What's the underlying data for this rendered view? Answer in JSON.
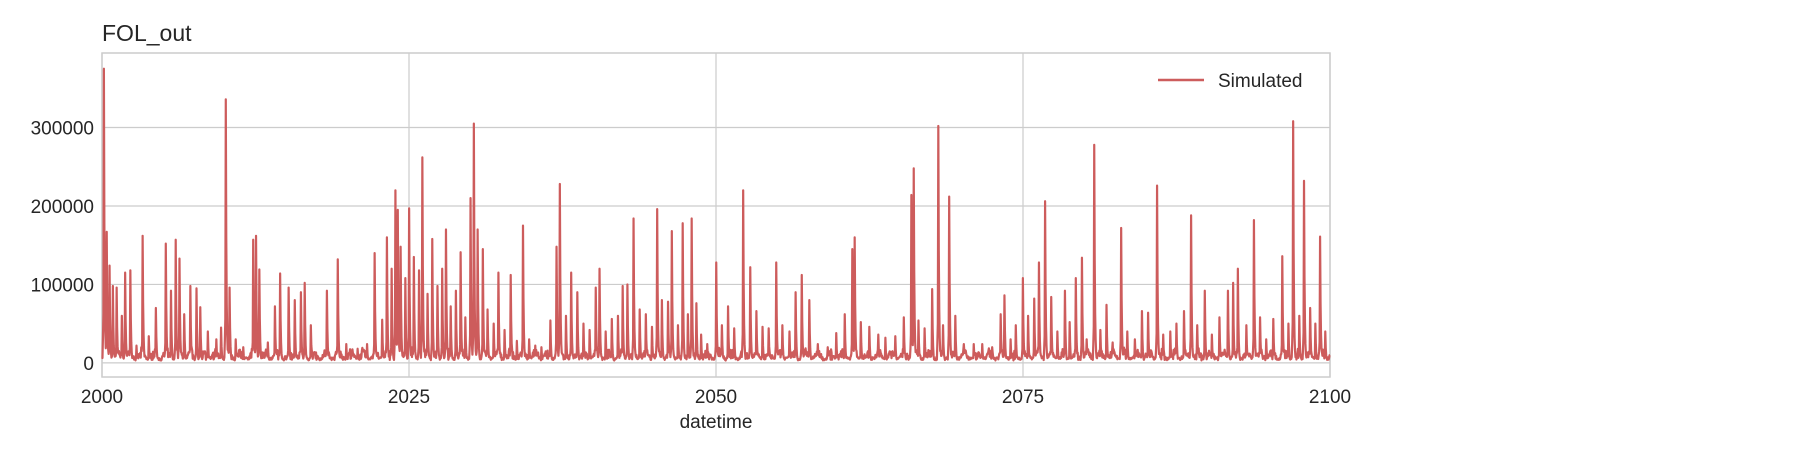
{
  "chart_data": {
    "type": "line",
    "title": "FOL_out",
    "xlabel": "datetime",
    "ylabel": "",
    "xlim": [
      2000,
      2100
    ],
    "ylim": [
      -18000,
      395000
    ],
    "x_ticks": [
      2000,
      2025,
      2050,
      2075,
      2100
    ],
    "x_tick_labels": [
      "2000",
      "2025",
      "2050",
      "2075",
      "2100"
    ],
    "y_ticks": [
      0,
      100000,
      200000,
      300000
    ],
    "y_tick_labels": [
      "0",
      "100000",
      "200000",
      "300000"
    ],
    "grid": true,
    "legend_position": "top-right",
    "color": "#cd5c5c",
    "series": [
      {
        "name": "Simulated",
        "color": "#cd5c5c",
        "baseline": 12000,
        "peaks": [
          [
            2000.15,
            375000
          ],
          [
            2000.4,
            167000
          ],
          [
            2000.6,
            124000
          ],
          [
            2000.9,
            98000
          ],
          [
            2001.2,
            96000
          ],
          [
            2001.6,
            60000
          ],
          [
            2001.9,
            115000
          ],
          [
            2002.3,
            118000
          ],
          [
            2002.8,
            22000
          ],
          [
            2003.3,
            162000
          ],
          [
            2003.8,
            34000
          ],
          [
            2004.4,
            70000
          ],
          [
            2005.2,
            152000
          ],
          [
            2005.6,
            92000
          ],
          [
            2006.0,
            157000
          ],
          [
            2006.3,
            133000
          ],
          [
            2006.7,
            62000
          ],
          [
            2007.2,
            98000
          ],
          [
            2007.7,
            95000
          ],
          [
            2008.0,
            71000
          ],
          [
            2008.6,
            40000
          ],
          [
            2009.3,
            30000
          ],
          [
            2009.7,
            45000
          ],
          [
            2010.1,
            336000
          ],
          [
            2010.4,
            96000
          ],
          [
            2010.9,
            30000
          ],
          [
            2011.5,
            20000
          ],
          [
            2012.3,
            157000
          ],
          [
            2012.55,
            162000
          ],
          [
            2012.8,
            119000
          ],
          [
            2013.5,
            26000
          ],
          [
            2014.1,
            72000
          ],
          [
            2014.5,
            114000
          ],
          [
            2015.2,
            96000
          ],
          [
            2015.7,
            80000
          ],
          [
            2016.2,
            90000
          ],
          [
            2016.5,
            102000
          ],
          [
            2017.0,
            48000
          ],
          [
            2018.3,
            92000
          ],
          [
            2019.2,
            132000
          ],
          [
            2019.9,
            24000
          ],
          [
            2020.8,
            18000
          ],
          [
            2021.6,
            24000
          ],
          [
            2022.2,
            140000
          ],
          [
            2022.8,
            55000
          ],
          [
            2023.2,
            160000
          ],
          [
            2023.6,
            120000
          ],
          [
            2023.9,
            220000
          ],
          [
            2024.1,
            195000
          ],
          [
            2024.3,
            148000
          ],
          [
            2024.7,
            108000
          ],
          [
            2025.0,
            197000
          ],
          [
            2025.4,
            135000
          ],
          [
            2025.8,
            118000
          ],
          [
            2026.1,
            262000
          ],
          [
            2026.5,
            88000
          ],
          [
            2026.9,
            158000
          ],
          [
            2027.3,
            98000
          ],
          [
            2027.7,
            120000
          ],
          [
            2028.0,
            170000
          ],
          [
            2028.4,
            72000
          ],
          [
            2028.8,
            92000
          ],
          [
            2029.2,
            141000
          ],
          [
            2029.6,
            58000
          ],
          [
            2030.0,
            210000
          ],
          [
            2030.3,
            305000
          ],
          [
            2030.6,
            170000
          ],
          [
            2031.0,
            145000
          ],
          [
            2031.4,
            68000
          ],
          [
            2031.9,
            50000
          ],
          [
            2032.3,
            115000
          ],
          [
            2032.8,
            42000
          ],
          [
            2033.3,
            112000
          ],
          [
            2033.8,
            28000
          ],
          [
            2034.3,
            175000
          ],
          [
            2034.8,
            30000
          ],
          [
            2035.3,
            22000
          ],
          [
            2035.8,
            20000
          ],
          [
            2036.5,
            54000
          ],
          [
            2037.0,
            148000
          ],
          [
            2037.3,
            228000
          ],
          [
            2037.8,
            60000
          ],
          [
            2038.2,
            115000
          ],
          [
            2038.7,
            90000
          ],
          [
            2039.2,
            50000
          ],
          [
            2039.7,
            42000
          ],
          [
            2040.2,
            96000
          ],
          [
            2040.5,
            120000
          ],
          [
            2041.0,
            40000
          ],
          [
            2041.5,
            56000
          ],
          [
            2042.0,
            60000
          ],
          [
            2042.4,
            98000
          ],
          [
            2042.8,
            100000
          ],
          [
            2043.3,
            184000
          ],
          [
            2043.8,
            68000
          ],
          [
            2044.3,
            62000
          ],
          [
            2044.8,
            46000
          ],
          [
            2045.2,
            196000
          ],
          [
            2045.6,
            80000
          ],
          [
            2046.1,
            78000
          ],
          [
            2046.4,
            168000
          ],
          [
            2046.9,
            48000
          ],
          [
            2047.3,
            178000
          ],
          [
            2047.7,
            62000
          ],
          [
            2048.0,
            184000
          ],
          [
            2048.4,
            76000
          ],
          [
            2048.8,
            36000
          ],
          [
            2049.3,
            24000
          ],
          [
            2050.0,
            128000
          ],
          [
            2050.5,
            48000
          ],
          [
            2051.0,
            72000
          ],
          [
            2051.5,
            44000
          ],
          [
            2052.2,
            220000
          ],
          [
            2052.8,
            122000
          ],
          [
            2053.3,
            66000
          ],
          [
            2053.8,
            46000
          ],
          [
            2054.3,
            44000
          ],
          [
            2054.9,
            128000
          ],
          [
            2055.4,
            48000
          ],
          [
            2056.0,
            40000
          ],
          [
            2056.5,
            90000
          ],
          [
            2057.0,
            112000
          ],
          [
            2057.6,
            80000
          ],
          [
            2058.3,
            24000
          ],
          [
            2059.1,
            20000
          ],
          [
            2059.8,
            38000
          ],
          [
            2060.5,
            62000
          ],
          [
            2061.1,
            145000
          ],
          [
            2061.3,
            160000
          ],
          [
            2061.8,
            52000
          ],
          [
            2062.5,
            46000
          ],
          [
            2063.2,
            36000
          ],
          [
            2063.8,
            32000
          ],
          [
            2064.6,
            34000
          ],
          [
            2065.3,
            58000
          ],
          [
            2065.9,
            214000
          ],
          [
            2066.1,
            248000
          ],
          [
            2066.5,
            54000
          ],
          [
            2067.0,
            44000
          ],
          [
            2067.6,
            94000
          ],
          [
            2068.1,
            302000
          ],
          [
            2068.5,
            48000
          ],
          [
            2069.0,
            212000
          ],
          [
            2069.5,
            60000
          ],
          [
            2070.2,
            24000
          ],
          [
            2071.0,
            24000
          ],
          [
            2071.7,
            24000
          ],
          [
            2072.5,
            20000
          ],
          [
            2073.2,
            62000
          ],
          [
            2073.5,
            86000
          ],
          [
            2074.0,
            30000
          ],
          [
            2074.4,
            48000
          ],
          [
            2075.0,
            108000
          ],
          [
            2075.4,
            60000
          ],
          [
            2075.9,
            82000
          ],
          [
            2076.3,
            128000
          ],
          [
            2076.8,
            206000
          ],
          [
            2077.3,
            84000
          ],
          [
            2077.8,
            40000
          ],
          [
            2078.4,
            92000
          ],
          [
            2078.8,
            52000
          ],
          [
            2079.3,
            108000
          ],
          [
            2079.8,
            134000
          ],
          [
            2080.2,
            30000
          ],
          [
            2080.8,
            278000
          ],
          [
            2081.3,
            42000
          ],
          [
            2081.8,
            74000
          ],
          [
            2082.3,
            26000
          ],
          [
            2083.0,
            172000
          ],
          [
            2083.5,
            40000
          ],
          [
            2084.1,
            30000
          ],
          [
            2084.7,
            66000
          ],
          [
            2085.2,
            64000
          ],
          [
            2085.9,
            226000
          ],
          [
            2086.4,
            36000
          ],
          [
            2087.0,
            40000
          ],
          [
            2087.5,
            50000
          ],
          [
            2088.1,
            66000
          ],
          [
            2088.7,
            188000
          ],
          [
            2089.2,
            48000
          ],
          [
            2089.8,
            92000
          ],
          [
            2090.4,
            36000
          ],
          [
            2091.0,
            58000
          ],
          [
            2091.7,
            92000
          ],
          [
            2092.1,
            102000
          ],
          [
            2092.5,
            120000
          ],
          [
            2093.2,
            48000
          ],
          [
            2093.8,
            182000
          ],
          [
            2094.3,
            58000
          ],
          [
            2094.8,
            30000
          ],
          [
            2095.4,
            56000
          ],
          [
            2096.1,
            136000
          ],
          [
            2096.6,
            50000
          ],
          [
            2097.0,
            308000
          ],
          [
            2097.5,
            60000
          ],
          [
            2097.9,
            232000
          ],
          [
            2098.4,
            70000
          ],
          [
            2098.8,
            50000
          ],
          [
            2099.2,
            161000
          ],
          [
            2099.6,
            40000
          ]
        ]
      }
    ]
  }
}
